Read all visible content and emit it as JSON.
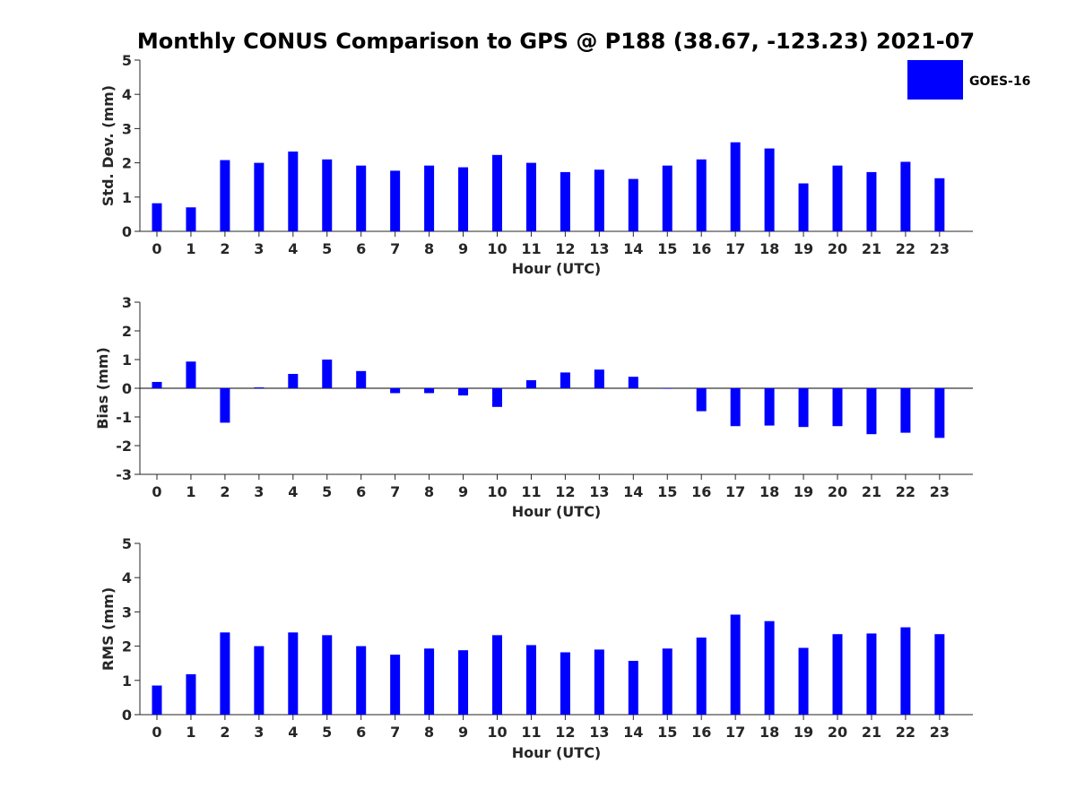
{
  "figure_title": "Monthly CONUS Comparison to GPS @ P188 (38.67, -123.23) 2021-07",
  "legend": {
    "label": "GOES-16",
    "color": "#0000ff",
    "placement": "top-right"
  },
  "colors": {
    "bar": "#0000ff",
    "axis": "#262626"
  },
  "chart_data": [
    {
      "type": "bar",
      "title": "",
      "xlabel": "Hour (UTC)",
      "ylabel": "Std. Dev. (mm)",
      "categories": [
        "0",
        "1",
        "2",
        "3",
        "4",
        "5",
        "6",
        "7",
        "8",
        "9",
        "10",
        "11",
        "12",
        "13",
        "14",
        "15",
        "16",
        "17",
        "18",
        "19",
        "20",
        "21",
        "22",
        "23"
      ],
      "series": [
        {
          "name": "GOES-16",
          "values": [
            0.82,
            0.7,
            2.08,
            2.0,
            2.33,
            2.1,
            1.92,
            1.77,
            1.92,
            1.87,
            2.23,
            2.0,
            1.73,
            1.8,
            1.53,
            1.92,
            2.1,
            2.6,
            2.42,
            1.4,
            1.92,
            1.73,
            2.03,
            1.55
          ]
        }
      ],
      "ylim": [
        0,
        5
      ],
      "yticks": [
        0,
        1,
        2,
        3,
        4,
        5
      ],
      "grid": false
    },
    {
      "type": "bar",
      "title": "",
      "xlabel": "Hour (UTC)",
      "ylabel": "Bias (mm)",
      "categories": [
        "0",
        "1",
        "2",
        "3",
        "4",
        "5",
        "6",
        "7",
        "8",
        "9",
        "10",
        "11",
        "12",
        "13",
        "14",
        "15",
        "16",
        "17",
        "18",
        "19",
        "20",
        "21",
        "22",
        "23"
      ],
      "series": [
        {
          "name": "GOES-16",
          "values": [
            0.22,
            0.93,
            -1.2,
            0.03,
            0.5,
            1.0,
            0.6,
            -0.17,
            -0.17,
            -0.25,
            -0.65,
            0.28,
            0.55,
            0.65,
            0.4,
            0.0,
            -0.8,
            -1.32,
            -1.3,
            -1.35,
            -1.32,
            -1.6,
            -1.55,
            -1.73
          ]
        }
      ],
      "ylim": [
        -3,
        3
      ],
      "yticks": [
        -3,
        -2,
        -1,
        0,
        1,
        2,
        3
      ],
      "grid": false
    },
    {
      "type": "bar",
      "title": "",
      "xlabel": "Hour (UTC)",
      "ylabel": "RMS (mm)",
      "categories": [
        "0",
        "1",
        "2",
        "3",
        "4",
        "5",
        "6",
        "7",
        "8",
        "9",
        "10",
        "11",
        "12",
        "13",
        "14",
        "15",
        "16",
        "17",
        "18",
        "19",
        "20",
        "21",
        "22",
        "23"
      ],
      "series": [
        {
          "name": "GOES-16",
          "values": [
            0.85,
            1.18,
            2.4,
            2.0,
            2.4,
            2.32,
            2.0,
            1.75,
            1.93,
            1.88,
            2.32,
            2.03,
            1.82,
            1.9,
            1.57,
            1.93,
            2.25,
            2.92,
            2.73,
            1.95,
            2.35,
            2.37,
            2.55,
            2.35
          ]
        }
      ],
      "ylim": [
        0,
        5
      ],
      "yticks": [
        0,
        1,
        2,
        3,
        4,
        5
      ],
      "grid": false
    }
  ]
}
